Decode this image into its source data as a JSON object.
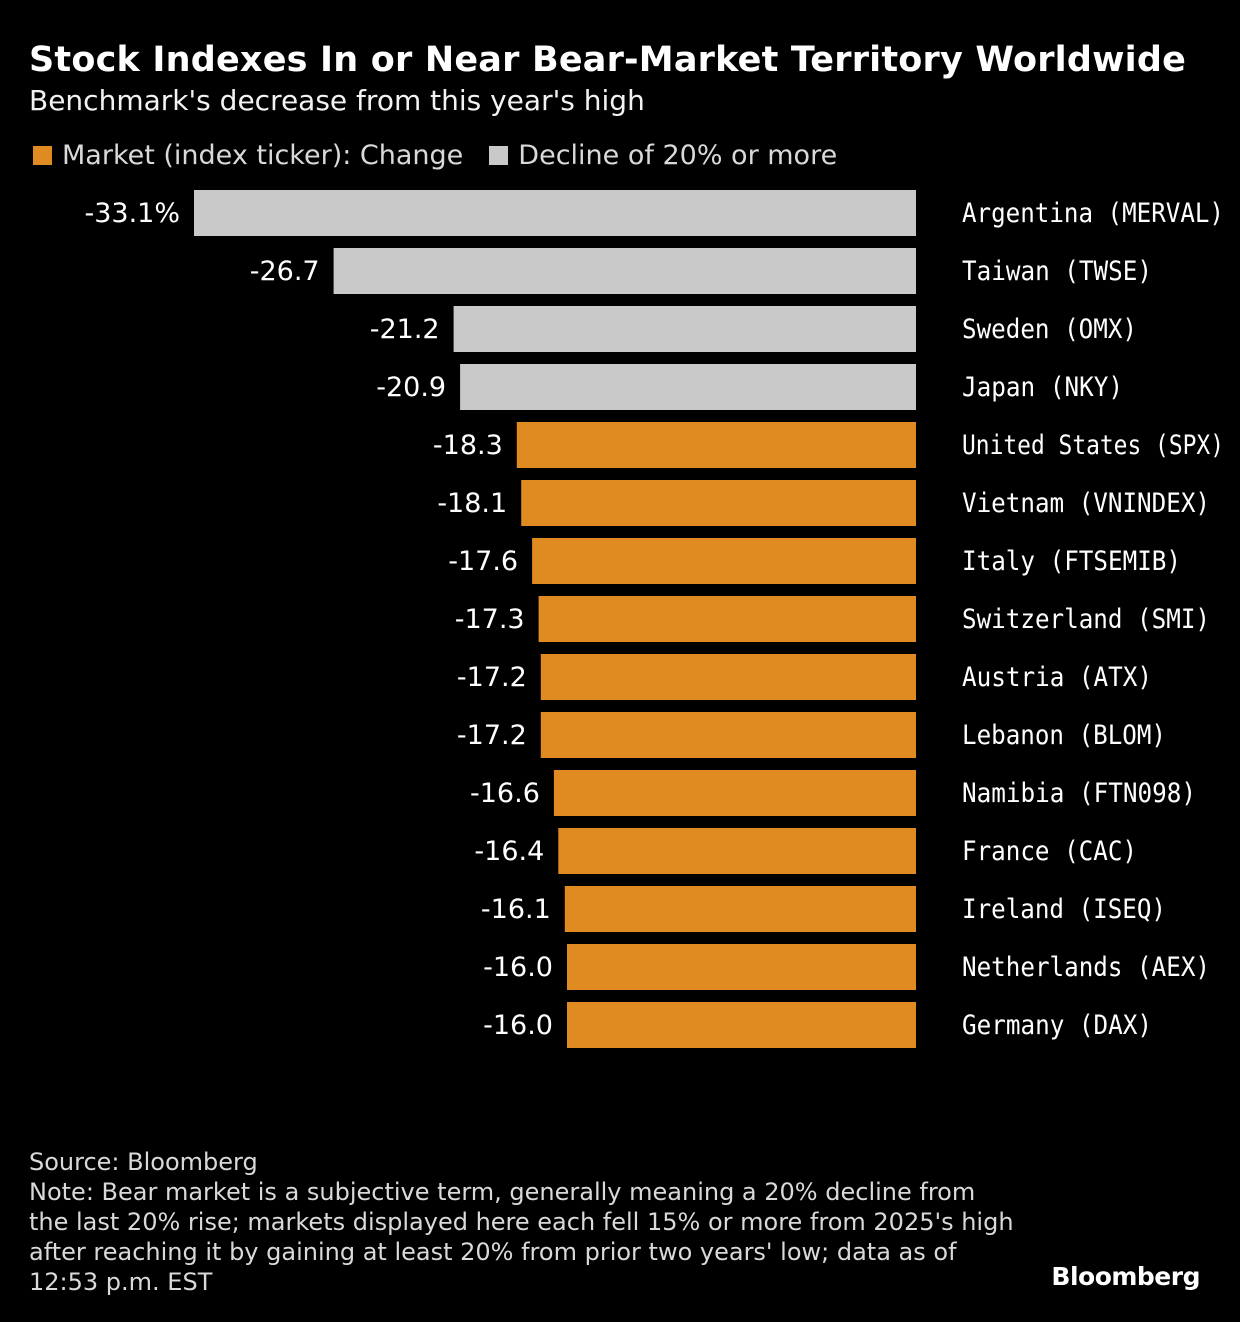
{
  "title": "Stock Indexes In or Near Bear-Market Territory Worldwide",
  "subtitle": "Benchmark's decrease from this year's high",
  "legend": [
    {
      "label": "Market (index ticker): Change",
      "color": "#e08a22"
    },
    {
      "label": "Decline of 20% or more",
      "color": "#c8c8c8"
    }
  ],
  "chart_data": {
    "type": "bar",
    "orientation": "horizontal",
    "title": "Stock Indexes In or Near Bear-Market Territory Worldwide",
    "subtitle": "Benchmark's decrease from this year's high",
    "unit": "%",
    "categories": [
      "Argentina (MERVAL)",
      "Taiwan (TWSE)",
      "Sweden (OMX)",
      "Japan (NKY)",
      "United States (SPX)",
      "Vietnam (VNINDEX)",
      "Italy (FTSEMIB)",
      "Switzerland (SMI)",
      "Austria (ATX)",
      "Lebanon (BLOM)",
      "Namibia (FTN098)",
      "France (CAC)",
      "Ireland (ISEQ)",
      "Netherlands (AEX)",
      "Germany (DAX)"
    ],
    "values": [
      -33.1,
      -26.7,
      -21.2,
      -20.9,
      -18.3,
      -18.1,
      -17.6,
      -17.3,
      -17.2,
      -17.2,
      -16.6,
      -16.4,
      -16.1,
      -16.0,
      -16.0
    ],
    "value_labels": [
      "-33.1%",
      "-26.7",
      "-21.2",
      "-20.9",
      "-18.3",
      "-18.1",
      "-17.6",
      "-17.3",
      "-17.2",
      "-17.2",
      "-16.6",
      "-16.4",
      "-16.1",
      "-16.0",
      "-16.0"
    ],
    "highlight_threshold": -20,
    "colors": {
      "normal": "#e08a22",
      "decline20": "#c8c8c8"
    },
    "xlim": [
      -33.1,
      0
    ]
  },
  "footer": {
    "source": "Source: Bloomberg",
    "note": "Note: Bear market is a subjective term, generally meaning a 20% decline from the last 20% rise; markets displayed here each fell 15% or more from 2025's high after reaching it by gaining at least 20% from prior two years' low; data as of 12:53 p.m. EST"
  },
  "brand": "Bloomberg"
}
